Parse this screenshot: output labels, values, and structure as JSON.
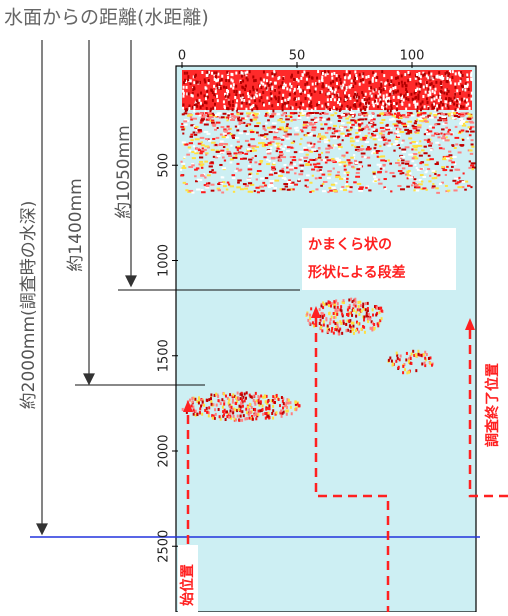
{
  "title": "水面からの距離(水距離)",
  "x_axis": {
    "ticks": [
      0,
      50,
      100
    ]
  },
  "y_axis": {
    "ticks": [
      500,
      1000,
      1500,
      2000,
      2500
    ]
  },
  "arrows": [
    {
      "label": "約1050mm"
    },
    {
      "label": "約1400mm"
    },
    {
      "label": "約2000mm(調査時の水深)"
    }
  ],
  "callout": {
    "lines": [
      "かまくら状の",
      "形状による段差"
    ]
  },
  "start_label": "始位置",
  "end_label": "調査終了位置"
}
